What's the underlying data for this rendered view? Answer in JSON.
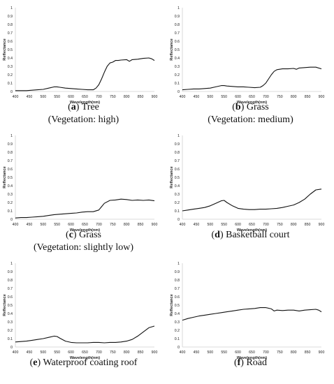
{
  "chart_data": [
    {
      "type": "line",
      "panel_letter": "a",
      "caption": "Tree",
      "caption_line2": "(Vegetation: high)",
      "xlabel": "Wavelength(nm)",
      "ylabel": "Reflectance",
      "xlim": [
        400,
        900
      ],
      "ylim": [
        0,
        1
      ],
      "xticks": [
        400,
        450,
        500,
        550,
        600,
        650,
        700,
        750,
        800,
        850,
        900
      ],
      "yticks": [
        0,
        0.1,
        0.2,
        0.3,
        0.4,
        0.5,
        0.6,
        0.7,
        0.8,
        0.9,
        1
      ],
      "series": [
        {
          "x": [
            400,
            420,
            440,
            460,
            480,
            500,
            520,
            540,
            550,
            560,
            580,
            600,
            620,
            640,
            660,
            680,
            690,
            700,
            710,
            720,
            730,
            740,
            750,
            760,
            770,
            780,
            800,
            810,
            820,
            840,
            860,
            880,
            890,
            900
          ],
          "y": [
            0.01,
            0.01,
            0.01,
            0.015,
            0.02,
            0.025,
            0.04,
            0.055,
            0.055,
            0.05,
            0.04,
            0.035,
            0.03,
            0.025,
            0.02,
            0.02,
            0.04,
            0.08,
            0.15,
            0.23,
            0.3,
            0.34,
            0.35,
            0.37,
            0.37,
            0.375,
            0.38,
            0.36,
            0.38,
            0.385,
            0.395,
            0.4,
            0.39,
            0.37
          ]
        }
      ]
    },
    {
      "type": "line",
      "panel_letter": "b",
      "caption": "Grass",
      "caption_line2": "(Vegetation: medium)",
      "xlabel": "Wavelength(nm)",
      "ylabel": "Reflectance",
      "xlim": [
        400,
        900
      ],
      "ylim": [
        0,
        1
      ],
      "xticks": [
        400,
        450,
        500,
        550,
        600,
        650,
        700,
        750,
        800,
        850,
        900
      ],
      "yticks": [
        0,
        0.1,
        0.2,
        0.3,
        0.4,
        0.5,
        0.6,
        0.7,
        0.8,
        0.9,
        1
      ],
      "series": [
        {
          "x": [
            400,
            420,
            440,
            460,
            480,
            500,
            520,
            540,
            550,
            560,
            580,
            600,
            620,
            640,
            660,
            680,
            690,
            700,
            710,
            720,
            730,
            740,
            750,
            760,
            780,
            800,
            810,
            820,
            840,
            860,
            880,
            900
          ],
          "y": [
            0.02,
            0.025,
            0.03,
            0.03,
            0.035,
            0.04,
            0.055,
            0.07,
            0.07,
            0.065,
            0.06,
            0.055,
            0.055,
            0.05,
            0.045,
            0.05,
            0.07,
            0.1,
            0.15,
            0.2,
            0.24,
            0.26,
            0.265,
            0.27,
            0.27,
            0.275,
            0.265,
            0.28,
            0.285,
            0.29,
            0.29,
            0.27
          ]
        }
      ]
    },
    {
      "type": "line",
      "panel_letter": "c",
      "caption": "Grass",
      "caption_line2": "(Vegetation: slightly low)",
      "xlabel": "Wavelength(nm)",
      "ylabel": "Reflectance",
      "xlim": [
        400,
        900
      ],
      "ylim": [
        0,
        1
      ],
      "xticks": [
        400,
        450,
        500,
        550,
        600,
        650,
        700,
        750,
        800,
        850,
        900
      ],
      "yticks": [
        0,
        0.1,
        0.2,
        0.3,
        0.4,
        0.5,
        0.6,
        0.7,
        0.8,
        0.9,
        1
      ],
      "series": [
        {
          "x": [
            400,
            420,
            440,
            460,
            480,
            500,
            520,
            540,
            560,
            580,
            600,
            620,
            640,
            660,
            680,
            700,
            710,
            720,
            740,
            760,
            780,
            800,
            820,
            840,
            860,
            880,
            900
          ],
          "y": [
            0.015,
            0.02,
            0.02,
            0.025,
            0.03,
            0.035,
            0.045,
            0.055,
            0.06,
            0.065,
            0.07,
            0.075,
            0.085,
            0.09,
            0.09,
            0.11,
            0.15,
            0.19,
            0.225,
            0.23,
            0.24,
            0.235,
            0.225,
            0.23,
            0.225,
            0.23,
            0.22
          ]
        }
      ]
    },
    {
      "type": "line",
      "panel_letter": "d",
      "caption": "Basketball court",
      "caption_line2": "",
      "xlabel": "Wavelength(nm)",
      "ylabel": "Reflectance",
      "xlim": [
        400,
        900
      ],
      "ylim": [
        0,
        1
      ],
      "xticks": [
        400,
        450,
        500,
        550,
        600,
        650,
        700,
        750,
        800,
        850,
        900
      ],
      "yticks": [
        0,
        0.1,
        0.2,
        0.3,
        0.4,
        0.5,
        0.6,
        0.7,
        0.8,
        0.9,
        1
      ],
      "series": [
        {
          "x": [
            400,
            420,
            440,
            460,
            480,
            500,
            520,
            540,
            550,
            560,
            580,
            600,
            620,
            640,
            660,
            680,
            700,
            720,
            740,
            760,
            780,
            800,
            820,
            840,
            860,
            880,
            900
          ],
          "y": [
            0.1,
            0.11,
            0.12,
            0.13,
            0.14,
            0.16,
            0.19,
            0.22,
            0.225,
            0.2,
            0.16,
            0.13,
            0.12,
            0.115,
            0.115,
            0.12,
            0.12,
            0.125,
            0.13,
            0.14,
            0.155,
            0.17,
            0.2,
            0.24,
            0.3,
            0.35,
            0.36
          ]
        }
      ]
    },
    {
      "type": "line",
      "panel_letter": "e",
      "caption": "Waterproof coating roof",
      "caption_line2": "",
      "xlabel": "Wavelength(nm)",
      "ylabel": "Reflectance",
      "xlim": [
        400,
        900
      ],
      "ylim": [
        0,
        1
      ],
      "xticks": [
        400,
        450,
        500,
        550,
        600,
        650,
        700,
        750,
        800,
        850,
        900
      ],
      "yticks": [
        0,
        0.1,
        0.2,
        0.3,
        0.4,
        0.5,
        0.6,
        0.7,
        0.8,
        0.9,
        1
      ],
      "series": [
        {
          "x": [
            400,
            420,
            440,
            460,
            480,
            500,
            520,
            540,
            550,
            560,
            580,
            600,
            620,
            640,
            660,
            680,
            700,
            720,
            740,
            760,
            780,
            800,
            820,
            840,
            860,
            880,
            900
          ],
          "y": [
            0.06,
            0.065,
            0.07,
            0.08,
            0.09,
            0.1,
            0.115,
            0.13,
            0.125,
            0.105,
            0.07,
            0.055,
            0.05,
            0.05,
            0.05,
            0.055,
            0.055,
            0.05,
            0.055,
            0.055,
            0.06,
            0.07,
            0.09,
            0.13,
            0.18,
            0.23,
            0.25
          ]
        }
      ]
    },
    {
      "type": "line",
      "panel_letter": "f",
      "caption": "Road",
      "caption_line2": "",
      "xlabel": "Wavelength(nm)",
      "ylabel": "Reflectance",
      "xlim": [
        400,
        900
      ],
      "ylim": [
        0,
        1
      ],
      "xticks": [
        400,
        450,
        500,
        550,
        600,
        650,
        700,
        750,
        800,
        850,
        900
      ],
      "yticks": [
        0,
        0.1,
        0.2,
        0.3,
        0.4,
        0.5,
        0.6,
        0.7,
        0.8,
        0.9,
        1
      ],
      "series": [
        {
          "x": [
            400,
            420,
            440,
            460,
            480,
            500,
            520,
            540,
            560,
            580,
            600,
            620,
            640,
            660,
            680,
            700,
            720,
            730,
            740,
            760,
            780,
            800,
            820,
            840,
            860,
            880,
            890,
            900
          ],
          "y": [
            0.32,
            0.34,
            0.355,
            0.37,
            0.38,
            0.39,
            0.4,
            0.41,
            0.42,
            0.43,
            0.44,
            0.45,
            0.455,
            0.46,
            0.47,
            0.47,
            0.455,
            0.43,
            0.44,
            0.435,
            0.44,
            0.44,
            0.43,
            0.44,
            0.445,
            0.45,
            0.44,
            0.42
          ]
        }
      ]
    }
  ]
}
